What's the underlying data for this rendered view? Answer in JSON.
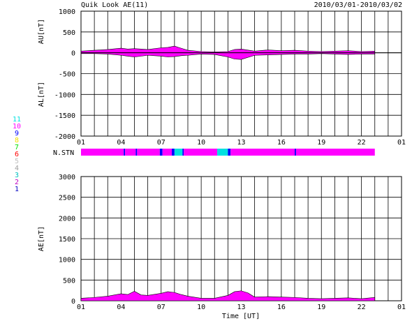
{
  "header": {
    "title": "Quik Look AE(11)",
    "date_range": "2010/03/01-2010/03/02"
  },
  "chart_data": [
    {
      "type": "area",
      "name": "AU/AL panel",
      "ylabel_top": "AU[nT]",
      "ylabel_bottom": "AL[nT]",
      "ylim": [
        -2000,
        1000
      ],
      "yticks": [
        "1000",
        "500",
        "0",
        "-500",
        "-1000",
        "-1500",
        "-2000"
      ],
      "ytick_values": [
        1000,
        500,
        0,
        -500,
        -1000,
        -1500,
        -2000
      ],
      "xticks": [
        "01",
        "04",
        "07",
        "10",
        "13",
        "16",
        "19",
        "22",
        "01"
      ],
      "xlim_hours": [
        1,
        25
      ],
      "au": {
        "x": [
          1,
          2,
          3,
          4,
          4.5,
          5,
          6,
          7,
          7.5,
          8,
          8.5,
          9,
          10,
          11,
          12,
          12.5,
          13,
          14,
          15,
          16,
          17,
          18,
          19,
          20,
          21,
          22,
          23
        ],
        "y": [
          40,
          60,
          80,
          110,
          90,
          100,
          80,
          120,
          130,
          160,
          110,
          60,
          30,
          20,
          30,
          80,
          90,
          40,
          70,
          50,
          60,
          40,
          30,
          40,
          50,
          30,
          40
        ]
      },
      "al": {
        "x": [
          1,
          2,
          3,
          4,
          4.5,
          5,
          6,
          7,
          7.5,
          8,
          8.5,
          9,
          10,
          11,
          12,
          12.5,
          13,
          14,
          15,
          16,
          17,
          18,
          19,
          20,
          21,
          22,
          23
        ],
        "y": [
          -20,
          -20,
          -30,
          -60,
          -80,
          -100,
          -60,
          -80,
          -100,
          -90,
          -70,
          -60,
          -30,
          -40,
          -100,
          -150,
          -160,
          -60,
          -50,
          -40,
          -30,
          -30,
          -20,
          -30,
          -40,
          -30,
          -30
        ]
      }
    },
    {
      "type": "bar",
      "name": "station count strip",
      "label": "N.STN",
      "segments": [
        {
          "from": 1,
          "to": 4.2,
          "stations": 10
        },
        {
          "from": 4.2,
          "to": 4.3,
          "stations": 9
        },
        {
          "from": 4.3,
          "to": 5.1,
          "stations": 10
        },
        {
          "from": 5.1,
          "to": 5.2,
          "stations": 9
        },
        {
          "from": 5.2,
          "to": 6.9,
          "stations": 10
        },
        {
          "from": 6.9,
          "to": 7.1,
          "stations": 9
        },
        {
          "from": 7.1,
          "to": 7.8,
          "stations": 10
        },
        {
          "from": 7.8,
          "to": 8.0,
          "stations": 9
        },
        {
          "from": 8.0,
          "to": 8.6,
          "stations": 11
        },
        {
          "from": 8.6,
          "to": 8.7,
          "stations": 9
        },
        {
          "from": 8.7,
          "to": 11.2,
          "stations": 10
        },
        {
          "from": 11.2,
          "to": 12.0,
          "stations": 11
        },
        {
          "from": 12.0,
          "to": 12.2,
          "stations": 9
        },
        {
          "from": 12.2,
          "to": 17.0,
          "stations": 10
        },
        {
          "from": 17.0,
          "to": 17.1,
          "stations": 9
        },
        {
          "from": 17.1,
          "to": 23.0,
          "stations": 10
        }
      ]
    },
    {
      "type": "area",
      "name": "AE panel",
      "ylabel": "AE[nT]",
      "xlabel": "Time [UT]",
      "ylim": [
        0,
        3000
      ],
      "yticks": [
        "3000",
        "2500",
        "2000",
        "1500",
        "1000",
        "500",
        "0"
      ],
      "ytick_values": [
        3000,
        2500,
        2000,
        1500,
        1000,
        500,
        0
      ],
      "xticks": [
        "01",
        "04",
        "07",
        "10",
        "13",
        "16",
        "19",
        "22",
        "01"
      ],
      "xlim_hours": [
        1,
        25
      ],
      "ae": {
        "x": [
          1,
          2,
          3,
          4,
          4.5,
          5,
          5.5,
          6,
          7,
          7.5,
          8,
          8.5,
          9,
          10,
          11,
          12,
          12.5,
          13,
          13.5,
          14,
          15,
          16,
          17,
          18,
          19,
          20,
          21,
          22,
          23,
          23
        ],
        "y": [
          60,
          80,
          110,
          170,
          150,
          230,
          140,
          130,
          180,
          220,
          200,
          150,
          110,
          60,
          60,
          130,
          220,
          240,
          190,
          90,
          100,
          90,
          80,
          60,
          50,
          60,
          70,
          50,
          80,
          0
        ]
      }
    }
  ],
  "legend": {
    "entries": [
      {
        "label": "11",
        "color": "#00e0e0"
      },
      {
        "label": "10",
        "color": "#ff00ff"
      },
      {
        "label": "9",
        "color": "#0000ff"
      },
      {
        "label": "8",
        "color": "#f0e000"
      },
      {
        "label": "7",
        "color": "#00e000"
      },
      {
        "label": "6",
        "color": "#ff0000"
      },
      {
        "label": "5",
        "color": "#c0c0c0"
      },
      {
        "label": "4",
        "color": "#a0a0a0"
      },
      {
        "label": "3",
        "color": "#00c0c0"
      },
      {
        "label": "2",
        "color": "#c000c0"
      },
      {
        "label": "1",
        "color": "#0000c0"
      }
    ]
  },
  "colors": {
    "fill_main": "#ff00ff",
    "fill_high": "#00e000",
    "grid": "#000000"
  }
}
